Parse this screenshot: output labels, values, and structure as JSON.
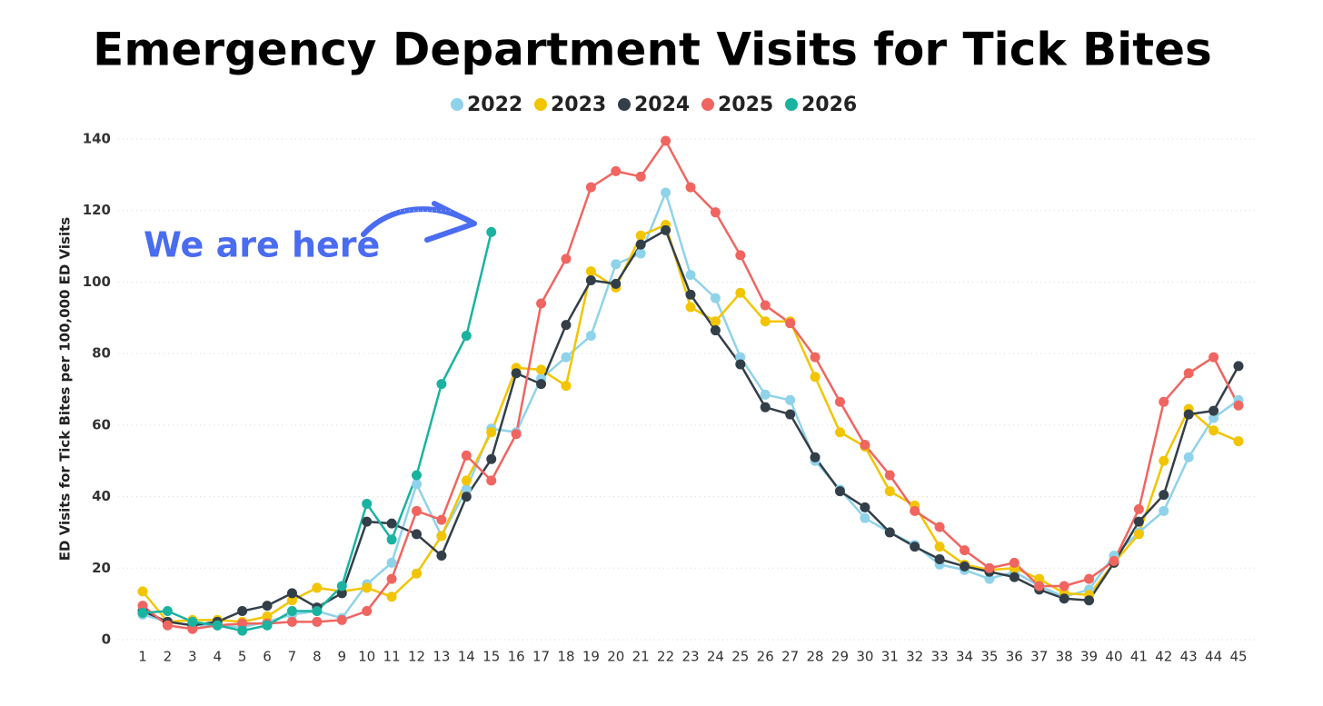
{
  "chart_data": {
    "type": "line",
    "title": "Emergency Department Visits for Tick Bites",
    "y_label": "ED Visits for Tick Bites per 100,000 ED Visits",
    "annotation": "We are here",
    "categories": [
      "1",
      "2",
      "3",
      "4",
      "5",
      "6",
      "7",
      "8",
      "9",
      "10",
      "11",
      "12",
      "13",
      "14",
      "15",
      "16",
      "17",
      "18",
      "19",
      "20",
      "21",
      "22",
      "23",
      "24",
      "25",
      "26",
      "27",
      "28",
      "29",
      "30",
      "31",
      "32",
      "33",
      "34",
      "35",
      "36",
      "37",
      "38",
      "39",
      "40",
      "41",
      "42",
      "43",
      "44",
      "45"
    ],
    "ylim": [
      0,
      140
    ],
    "yticks": [
      0,
      20,
      40,
      60,
      80,
      100,
      120,
      140
    ],
    "grid": true,
    "legend": "top",
    "series": [
      {
        "name": "2022",
        "color": "#8fd3ea",
        "values": [
          7,
          5,
          4,
          4,
          3.5,
          5,
          7,
          8,
          6,
          15.5,
          21.5,
          43.5,
          29,
          42,
          59,
          58,
          73,
          79,
          85,
          105,
          108,
          125,
          102,
          95.5,
          79,
          68.5,
          67,
          50,
          42,
          34,
          30,
          26.5,
          21,
          19.5,
          17,
          19,
          15,
          12,
          14,
          23.5,
          30,
          36,
          51,
          62,
          67
        ]
      },
      {
        "name": "2023",
        "color": "#f2c500",
        "values": [
          13.5,
          5,
          5.5,
          5.5,
          5,
          6.5,
          11,
          14.5,
          13.5,
          14.5,
          12,
          18.5,
          29,
          44.5,
          58,
          76,
          75.5,
          71,
          103,
          98.5,
          113,
          116,
          93,
          89,
          97,
          89,
          89,
          73.5,
          58,
          54,
          41.5,
          37.5,
          26,
          21,
          19.5,
          20,
          17,
          13,
          12.5,
          21.5,
          29.5,
          50,
          64.5,
          58.5,
          55.5
        ]
      },
      {
        "name": "2024",
        "color": "#333f48",
        "values": [
          8,
          5,
          4,
          5,
          8,
          9.5,
          13,
          9,
          13,
          33,
          32.5,
          29.5,
          23.5,
          40,
          50.5,
          74.5,
          71.5,
          88,
          100.5,
          99.5,
          110.5,
          114.5,
          96.5,
          86.5,
          77,
          65,
          63,
          51,
          41.5,
          37,
          30,
          26,
          22.5,
          20.5,
          19,
          17.5,
          14,
          11.5,
          11,
          21.5,
          33,
          40.5,
          63,
          64,
          76.5
        ]
      },
      {
        "name": "2025",
        "color": "#f06560",
        "values": [
          9.5,
          4,
          3,
          4,
          4.5,
          4.5,
          5,
          5,
          5.5,
          8,
          17,
          36,
          33.5,
          51.5,
          44.5,
          57.5,
          94,
          106.5,
          126.5,
          131,
          129.5,
          139.5,
          126.5,
          119.5,
          107.5,
          93.5,
          88.5,
          79,
          66.5,
          54.5,
          46,
          36,
          31.5,
          25,
          20,
          21.5,
          15,
          15,
          17,
          22,
          36.5,
          66.5,
          74.5,
          79,
          65.5
        ]
      },
      {
        "name": "2026",
        "color": "#1ab3a0",
        "values": [
          7.5,
          8,
          5,
          4,
          2.5,
          4,
          8,
          8,
          15,
          38,
          28,
          46,
          71.5,
          85,
          114,
          null,
          null,
          null,
          null,
          null,
          null,
          null,
          null,
          null,
          null,
          null,
          null,
          null,
          null,
          null,
          null,
          null,
          null,
          null,
          null,
          null,
          null,
          null,
          null,
          null,
          null,
          null,
          null,
          null,
          null
        ]
      }
    ]
  }
}
